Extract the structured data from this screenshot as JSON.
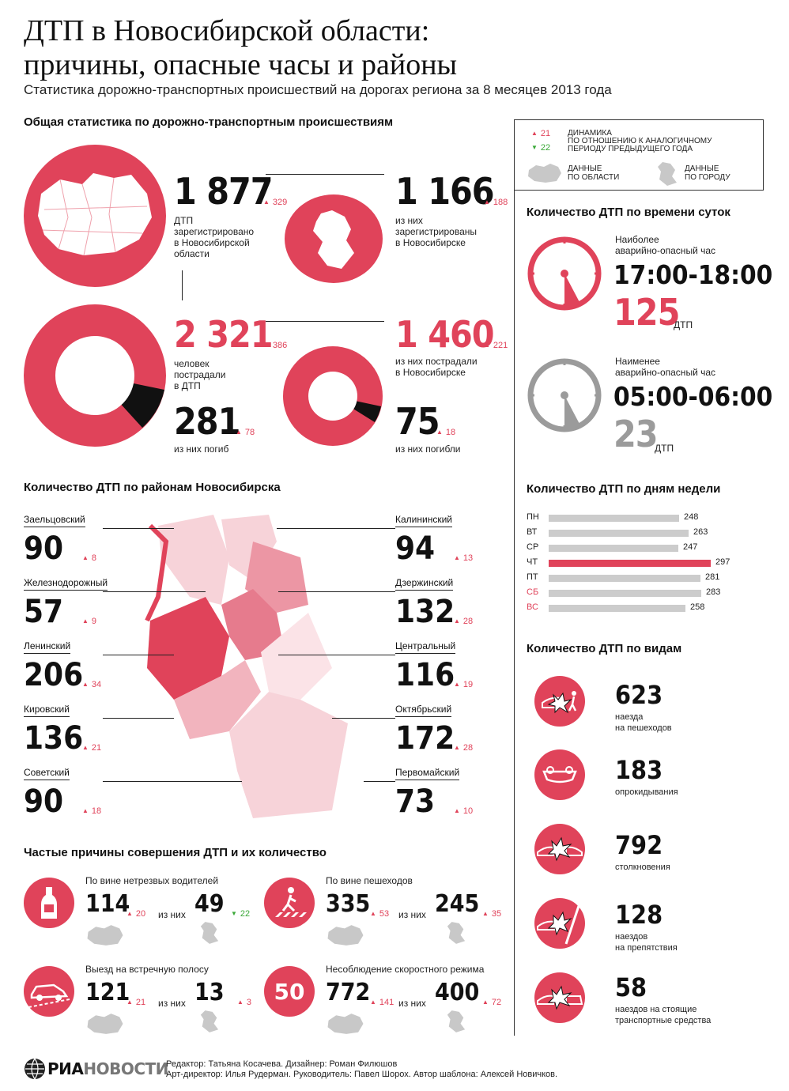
{
  "header": {
    "title1": "ДТП в Новосибирской области:",
    "title2": "причины, опасные часы и районы",
    "subtitle": "Статистика дорожно-транспортных происшествий на дорогах региона за 8 месяцев 2013 года"
  },
  "legend": {
    "up_value": "21",
    "dynamics": "ДИНАМИКА",
    "dynamics2": "ПО ОТНОШЕНИЮ К АНАЛОГИЧНОМУ",
    "dynamics3": "ПЕРИОДУ ПРЕДЫДУЩЕГО ГОДА",
    "down_value": "22",
    "region1": "ДАННЫЕ",
    "region2": "ПО ОБЛАСТИ",
    "city1": "ДАННЫЕ",
    "city2": "ПО ГОРОДУ"
  },
  "general": {
    "title": "Общая статистика по дорожно-транспортным происшествиям",
    "region_dtp": "1 877",
    "region_dtp_delta": "329",
    "region_dtp_l1": "ДТП",
    "region_dtp_l2": "зарегистрировано",
    "region_dtp_l3": "в Новосибирской",
    "region_dtp_l4": "области",
    "city_dtp": "1 166",
    "city_dtp_delta": "188",
    "city_dtp_l1": "из них",
    "city_dtp_l2": "зарегистрированы",
    "city_dtp_l3": "в Новосибирске",
    "region_inj": "2 321",
    "region_inj_delta": "386",
    "region_inj_l1": "человек",
    "region_inj_l2": "пострадали",
    "region_inj_l3": "в ДТП",
    "city_inj": "1 460",
    "city_inj_delta": "221",
    "city_inj_l1": "из них пострадали",
    "city_inj_l2": "в Новосибирске",
    "region_dead": "281",
    "region_dead_delta": "78",
    "region_dead_l": "из них погиб",
    "city_dead": "75",
    "city_dead_delta": "18",
    "city_dead_l": "из них погибли"
  },
  "time": {
    "title": "Количество ДТП по времени суток",
    "max_l1": "Наиболее",
    "max_l2": "аварийно-опасный час",
    "max_time": "17:00-18:00",
    "max_count": "125",
    "max_unit": "ДТП",
    "min_l1": "Наименее",
    "min_l2": "аварийно-опасный час",
    "min_time": "05:00-06:00",
    "min_count": "23",
    "min_unit": "ДТП"
  },
  "weekdays": {
    "title": "Количество ДТП по дням недели",
    "max_value": 297,
    "days": [
      {
        "d": "ПН",
        "v": 248
      },
      {
        "d": "ВТ",
        "v": 263
      },
      {
        "d": "СР",
        "v": 247
      },
      {
        "d": "ЧТ",
        "v": 297
      },
      {
        "d": "ПТ",
        "v": 281
      },
      {
        "d": "СБ",
        "v": 283
      },
      {
        "d": "ВС",
        "v": 258
      }
    ]
  },
  "districts": {
    "title": "Количество ДТП по районам Новосибирска",
    "left": [
      {
        "name": "Заельцовский",
        "v": "90",
        "d": "8"
      },
      {
        "name": "Железнодорожный",
        "v": "57",
        "d": "9"
      },
      {
        "name": "Ленинский",
        "v": "206",
        "d": "34"
      },
      {
        "name": "Кировский",
        "v": "136",
        "d": "21"
      },
      {
        "name": "Советский",
        "v": "90",
        "d": "18"
      }
    ],
    "right": [
      {
        "name": "Калининский",
        "v": "94",
        "d": "13"
      },
      {
        "name": "Дзержинский",
        "v": "132",
        "d": "28"
      },
      {
        "name": "Центральный",
        "v": "116",
        "d": "19"
      },
      {
        "name": "Октябрьский",
        "v": "172",
        "d": "28"
      },
      {
        "name": "Первомайский",
        "v": "73",
        "d": "10"
      }
    ]
  },
  "types": {
    "title": "Количество ДТП по видам",
    "items": [
      {
        "v": "623",
        "l1": "наезда",
        "l2": "на пешеходов"
      },
      {
        "v": "183",
        "l1": "опрокидывания",
        "l2": ""
      },
      {
        "v": "792",
        "l1": "столкновения",
        "l2": ""
      },
      {
        "v": "128",
        "l1": "наездов",
        "l2": "на препятствия"
      },
      {
        "v": "58",
        "l1": "наездов на стоящие",
        "l2": "транспортные средства"
      }
    ]
  },
  "reasons": {
    "title": "Частые причины совершения ДТП и их количество",
    "of": "из них",
    "drunk": {
      "t": "По вине нетрезвых водителей",
      "v": "114",
      "d": "20",
      "c": "49",
      "cd": "22"
    },
    "ped": {
      "t": "По вине пешеходов",
      "v": "335",
      "d": "53",
      "c": "245",
      "cd": "35"
    },
    "oncoming": {
      "t": "Выезд на встречную полосу",
      "v": "121",
      "d": "21",
      "c": "13",
      "cd": "3"
    },
    "speed": {
      "t": "Несоблюдение скоростного режима",
      "v": "772",
      "d": "141",
      "c": "400",
      "cd": "72",
      "sign": "50"
    }
  },
  "footer": {
    "logo1": "РИА",
    "logo2": "НОВОСТИ",
    "line1": "Редактор: Татьяна Косачева. Дизайнер: Роман Филюшов",
    "line2": "Арт-директор: Илья Рудерман. Руководитель: Павел Шорох. Автор шаблона: Алексей Новичков."
  },
  "colors": {
    "accent": "#e0435a",
    "grey": "#9b9b9b",
    "up": "#e0435a",
    "down": "#3aa838"
  }
}
